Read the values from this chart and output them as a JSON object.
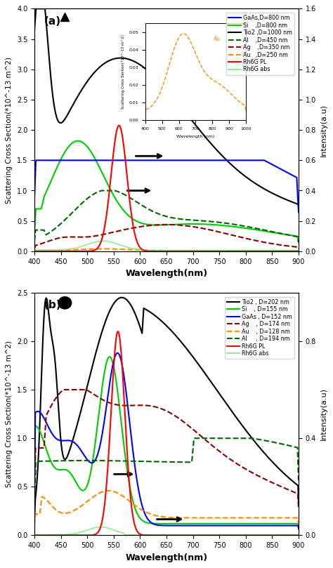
{
  "panel_a": {
    "title": "(a)",
    "ylabel_left": "Scattering Cross Section(*10^-13 m^2)",
    "ylabel_right": "Intensity(a.u)",
    "xlabel": "Wavelength(nm)",
    "xlim": [
      400,
      900
    ],
    "ylim_left": [
      0,
      4.0
    ],
    "ylim_right": [
      0,
      1.6
    ],
    "yticks_left": [
      0,
      0.5,
      1.0,
      1.5,
      2.0,
      2.5,
      3.0,
      3.5,
      4.0
    ],
    "yticks_right": [
      0.0,
      0.2,
      0.4,
      0.6,
      0.8,
      1.0,
      1.2,
      1.4,
      1.6
    ],
    "xticks": [
      400,
      450,
      500,
      550,
      600,
      650,
      700,
      750,
      800,
      850,
      900
    ],
    "legend_a": [
      {
        "label": "GaAs,D=800 nm",
        "color": "#0000ff",
        "ls": "-"
      },
      {
        "label": "Si    ,D=800 nm",
        "color": "#00cc00",
        "ls": "-"
      },
      {
        "label": "Tio2 ,D=1000 nm",
        "color": "#000000",
        "ls": "-"
      },
      {
        "label": "Al    ,D=450 nm",
        "color": "#006600",
        "ls": "--"
      },
      {
        "label": "Ag    ,D=350 nm",
        "color": "#8b0000",
        "ls": "--"
      },
      {
        "label": "Au   ,D=250 nm",
        "color": "#ff8c00",
        "ls": "--"
      },
      {
        "label": "Rh6G PL",
        "color": "#ff0000",
        "ls": "-"
      },
      {
        "label": "Rh6G abs",
        "color": "#90ee90",
        "ls": "-"
      }
    ],
    "inset": {
      "xlim": [
        400,
        1000
      ],
      "ylim": [
        0,
        0.055
      ],
      "yticks": [
        0,
        0.01,
        0.02,
        0.03,
        0.04,
        0.05
      ],
      "xticks": [
        400,
        500,
        600,
        700,
        800,
        900,
        1000
      ],
      "xlabel": "Wavelength (nm)",
      "ylabel": "Scattering Cross Section(*10^-13 m^2)",
      "label": "Au",
      "color": "#ff8c00",
      "bounds": [
        0.42,
        0.54,
        0.38,
        0.4
      ]
    }
  },
  "panel_b": {
    "title": "(b)",
    "ylabel_left": "Scattering Cross Section(*10^-13 m^2)",
    "ylabel_right": "Intensity(a.u)",
    "xlabel": "Wavelength(nm)",
    "xlim": [
      400,
      900
    ],
    "ylim_left": [
      0,
      2.5
    ],
    "ylim_right": [
      0,
      1.0
    ],
    "yticks_left": [
      0,
      0.5,
      1.0,
      1.5,
      2.0,
      2.5
    ],
    "yticks_right": [
      0.0,
      0.4,
      0.8
    ],
    "xticks": [
      400,
      450,
      500,
      550,
      600,
      650,
      700,
      750,
      800,
      850,
      900
    ],
    "legend_b": [
      {
        "label": "Tio2 , D=202 nm",
        "color": "#000000",
        "ls": "-"
      },
      {
        "label": "Si    , D=155 nm",
        "color": "#00cc00",
        "ls": "-"
      },
      {
        "label": "GaAs , D=152 nm",
        "color": "#0000ff",
        "ls": "-"
      },
      {
        "label": "Ag    , D=174 nm",
        "color": "#8b0000",
        "ls": "--"
      },
      {
        "label": "Au    , D=128 nm",
        "color": "#ff8c00",
        "ls": "--"
      },
      {
        "label": "Al     , D=194 nm",
        "color": "#006600",
        "ls": "--"
      },
      {
        "label": "Rh6G PL",
        "color": "#ff0000",
        "ls": "-"
      },
      {
        "label": "Rh6G abs",
        "color": "#90ee90",
        "ls": "-"
      }
    ]
  }
}
